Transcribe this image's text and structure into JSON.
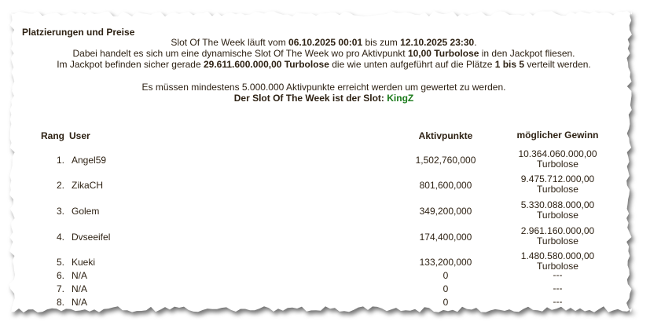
{
  "section_title": "Platzierungen und Preise",
  "info": {
    "line1": {
      "a": "Slot Of The Week läuft vom ",
      "start": "06.10.2025 00:01",
      "b": " bis zum ",
      "end": "12.10.2025 23:30",
      "c": "."
    },
    "line2": {
      "a": "Dabei handelt es sich um eine dynamische Slot Of The Week wo pro Aktivpunkt ",
      "rate": "10,00 Turbolose",
      "b": " in den Jackpot fliesen."
    },
    "line3": {
      "a": "Im Jackpot befinden sicher gerade ",
      "jackpot": "29.611.600.000,00 Turbolose",
      "b": " die wie unten aufgeführt auf die Plätze ",
      "places": "1 bis 5",
      "c": " verteilt werden."
    },
    "line4": "Es müssen mindestens 5.000.000 Aktivpunkte erreicht werden um gewertet zu werden.",
    "line5": {
      "a": "Der Slot Of The Week ist der Slot: ",
      "slot": "KingZ"
    }
  },
  "colors": {
    "text": "#2e2214",
    "slot_name": "#1a7a1a"
  },
  "table": {
    "headers": {
      "rang": "Rang",
      "user": "User",
      "points": "Aktivpunkte",
      "prize": "möglicher Gewinn"
    },
    "rows": [
      {
        "rank": "1.",
        "user": "Angel59",
        "points": "1,502,760,000",
        "prize": "10.364.060.000,00",
        "unit": "Turbolose"
      },
      {
        "rank": "2.",
        "user": "ZikaCH",
        "points": "801,600,000",
        "prize": "9.475.712.000,00",
        "unit": "Turbolose"
      },
      {
        "rank": "3.",
        "user": "Golem",
        "points": "349,200,000",
        "prize": "5.330.088.000,00",
        "unit": "Turbolose"
      },
      {
        "rank": "4.",
        "user": "Dvseeifel",
        "points": "174,400,000",
        "prize": "2.961.160.000,00",
        "unit": "Turbolose"
      },
      {
        "rank": "5.",
        "user": "Kueki",
        "points": "133,200,000",
        "prize": "1.480.580.000,00",
        "unit": "Turbolose"
      },
      {
        "rank": "6.",
        "user": "N/A",
        "points": "0",
        "prize": "---",
        "unit": ""
      },
      {
        "rank": "7.",
        "user": "N/A",
        "points": "0",
        "prize": "---",
        "unit": ""
      },
      {
        "rank": "8.",
        "user": "N/A",
        "points": "0",
        "prize": "---",
        "unit": ""
      }
    ]
  }
}
